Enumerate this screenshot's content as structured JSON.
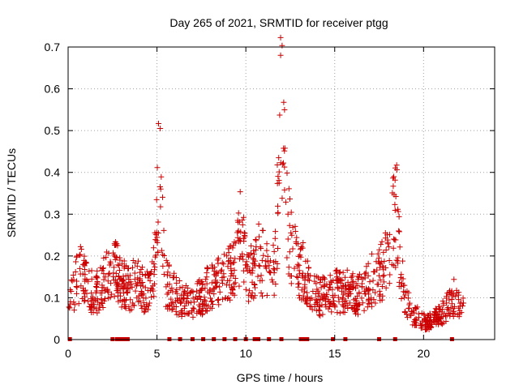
{
  "chart_data": {
    "type": "scatter",
    "title": "Day 265 of 2021, SRMTID for receiver ptgg",
    "xlabel": "GPS time / hours",
    "ylabel": "SRMTID / TECUs",
    "xlim": [
      0,
      24
    ],
    "ylim": [
      0,
      0.7
    ],
    "xticks": [
      0,
      5,
      10,
      15,
      20
    ],
    "yticks": [
      0,
      0.1,
      0.2,
      0.3,
      0.4,
      0.5,
      0.6,
      0.7
    ],
    "xtick_labels": [
      "0",
      "5",
      "10",
      "15",
      "20"
    ],
    "ytick_labels": [
      "0",
      "0.1",
      "0.2",
      "0.3",
      "0.4",
      "0.5",
      "0.6",
      "0.7"
    ],
    "grid": true,
    "marker": "+",
    "colors": {
      "points": "#cc0000",
      "grid": "#a0a0a0",
      "axis": "#000000"
    },
    "series": [
      {
        "name": "SRMTID",
        "profile": [
          [
            0.0,
            0.07
          ],
          [
            0.3,
            0.12
          ],
          [
            0.7,
            0.16
          ],
          [
            1.0,
            0.13
          ],
          [
            1.4,
            0.11
          ],
          [
            1.8,
            0.12
          ],
          [
            2.2,
            0.15
          ],
          [
            2.6,
            0.17
          ],
          [
            3.0,
            0.14
          ],
          [
            3.4,
            0.12
          ],
          [
            3.8,
            0.14
          ],
          [
            4.2,
            0.12
          ],
          [
            4.6,
            0.11
          ],
          [
            4.85,
            0.16
          ],
          [
            5.0,
            0.3
          ],
          [
            5.1,
            0.42
          ],
          [
            5.2,
            0.35
          ],
          [
            5.3,
            0.25
          ],
          [
            5.5,
            0.14
          ],
          [
            5.8,
            0.12
          ],
          [
            6.2,
            0.1
          ],
          [
            6.6,
            0.09
          ],
          [
            7.0,
            0.09
          ],
          [
            7.4,
            0.1
          ],
          [
            7.8,
            0.12
          ],
          [
            8.2,
            0.13
          ],
          [
            8.6,
            0.14
          ],
          [
            9.0,
            0.15
          ],
          [
            9.4,
            0.17
          ],
          [
            9.7,
            0.25
          ],
          [
            10.0,
            0.17
          ],
          [
            10.4,
            0.15
          ],
          [
            10.8,
            0.2
          ],
          [
            11.2,
            0.16
          ],
          [
            11.6,
            0.17
          ],
          [
            11.85,
            0.35
          ],
          [
            12.0,
            0.6
          ],
          [
            12.1,
            0.5
          ],
          [
            12.3,
            0.3
          ],
          [
            12.6,
            0.2
          ],
          [
            13.0,
            0.18
          ],
          [
            13.4,
            0.15
          ],
          [
            13.8,
            0.11
          ],
          [
            14.2,
            0.1
          ],
          [
            14.6,
            0.11
          ],
          [
            15.0,
            0.12
          ],
          [
            15.4,
            0.11
          ],
          [
            15.8,
            0.12
          ],
          [
            16.2,
            0.1
          ],
          [
            16.6,
            0.12
          ],
          [
            17.0,
            0.14
          ],
          [
            17.4,
            0.15
          ],
          [
            17.8,
            0.17
          ],
          [
            18.1,
            0.22
          ],
          [
            18.3,
            0.28
          ],
          [
            18.5,
            0.3
          ],
          [
            18.7,
            0.16
          ],
          [
            19.0,
            0.1
          ],
          [
            19.4,
            0.06
          ],
          [
            19.8,
            0.05
          ],
          [
            20.2,
            0.04
          ],
          [
            20.6,
            0.05
          ],
          [
            21.0,
            0.06
          ],
          [
            21.4,
            0.08
          ],
          [
            21.7,
            0.1
          ],
          [
            22.0,
            0.08
          ],
          [
            22.2,
            0.09
          ]
        ],
        "x_range": [
          0.05,
          22.25
        ],
        "n_points": 1300,
        "seed": 265
      }
    ],
    "gap_markers": {
      "y": 0,
      "x": [
        0.1,
        2.5,
        2.75,
        2.85,
        2.95,
        3.05,
        3.15,
        3.25,
        3.35,
        5.7,
        6.3,
        7.0,
        7.6,
        8.2,
        8.8,
        9.4,
        10.0,
        10.5,
        10.7,
        11.3,
        12.0,
        13.1,
        13.2,
        13.3,
        13.45,
        14.9,
        15.6,
        17.5,
        18.4,
        21.6
      ]
    }
  }
}
